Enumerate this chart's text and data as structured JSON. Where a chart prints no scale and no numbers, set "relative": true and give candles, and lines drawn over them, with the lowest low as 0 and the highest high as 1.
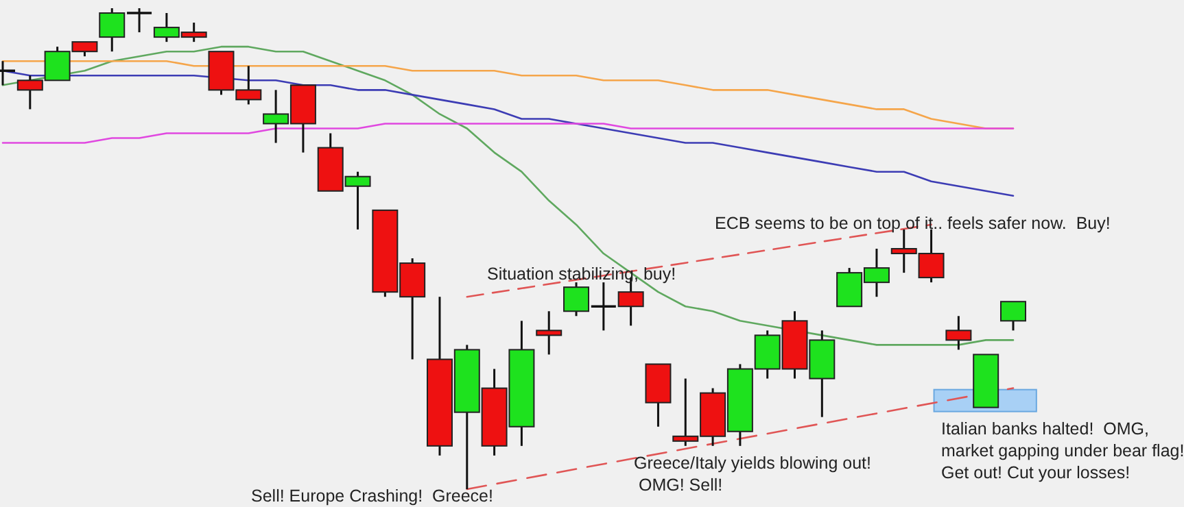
{
  "chart_data": {
    "type": "candlestick",
    "relative": true,
    "categories": [
      null,
      null,
      null,
      null,
      null,
      null,
      null,
      null,
      null,
      null,
      null,
      null,
      null,
      null,
      null,
      null,
      null,
      null,
      null,
      null,
      null,
      null,
      null,
      null,
      null,
      null,
      null,
      null,
      null,
      null,
      null,
      null,
      null,
      null,
      null,
      null,
      null,
      null
    ],
    "ohlc": [
      [
        0.87,
        0.89,
        0.84,
        0.87
      ],
      [
        0.85,
        0.86,
        0.79,
        0.83
      ],
      [
        0.85,
        0.92,
        0.85,
        0.91
      ],
      [
        0.93,
        0.93,
        0.9,
        0.91
      ],
      [
        0.94,
        1,
        0.91,
        0.99
      ],
      [
        0.99,
        1,
        0.95,
        0.99
      ],
      [
        0.94,
        0.99,
        0.93,
        0.96
      ],
      [
        0.95,
        0.97,
        0.93,
        0.94
      ],
      [
        0.91,
        0.91,
        0.82,
        0.83
      ],
      [
        0.83,
        0.88,
        0.8,
        0.81
      ],
      [
        0.76,
        0.83,
        0.72,
        0.78
      ],
      [
        0.84,
        0.84,
        0.7,
        0.76
      ],
      [
        0.71,
        0.74,
        0.62,
        0.62
      ],
      [
        0.63,
        0.66,
        0.54,
        0.65
      ],
      [
        0.58,
        0.58,
        0.4,
        0.41
      ],
      [
        0.47,
        0.48,
        0.27,
        0.4
      ],
      [
        0.27,
        0.4,
        0.07,
        0.09
      ],
      [
        0.16,
        0.3,
        0,
        0.29
      ],
      [
        0.21,
        0.25,
        0.07,
        0.09
      ],
      [
        0.13,
        0.35,
        0.09,
        0.29
      ],
      [
        0.33,
        0.37,
        0.28,
        0.32
      ],
      [
        0.37,
        0.43,
        0.36,
        0.42
      ],
      [
        0.38,
        0.43,
        0.33,
        0.38
      ],
      [
        0.41,
        0.44,
        0.34,
        0.38
      ],
      [
        0.26,
        0.26,
        0.13,
        0.18
      ],
      [
        0.11,
        0.23,
        0.09,
        0.1
      ],
      [
        0.2,
        0.21,
        0.09,
        0.11
      ],
      [
        0.12,
        0.26,
        0.09,
        0.25
      ],
      [
        0.25,
        0.33,
        0.23,
        0.32
      ],
      [
        0.35,
        0.37,
        0.23,
        0.25
      ],
      [
        0.23,
        0.33,
        0.15,
        0.31
      ],
      [
        0.38,
        0.46,
        0.38,
        0.45
      ],
      [
        0.43,
        0.5,
        0.4,
        0.46
      ],
      [
        0.5,
        0.54,
        0.45,
        0.49
      ],
      [
        0.49,
        0.54,
        0.43,
        0.44
      ],
      [
        0.33,
        0.36,
        0.29,
        0.31
      ],
      [
        0.17,
        0.28,
        0.17,
        0.28
      ],
      [
        0.35,
        0.39,
        0.33,
        0.39
      ]
    ],
    "colors": [
      "#111111",
      "#ee1111",
      "#1ee21e",
      "#ee1111",
      "#1ee21e",
      "#111111",
      "#1ee21e",
      "#ee1111",
      "#ee1111",
      "#ee1111",
      "#1ee21e",
      "#ee1111",
      "#ee1111",
      "#1ee21e",
      "#ee1111",
      "#ee1111",
      "#ee1111",
      "#1ee21e",
      "#ee1111",
      "#1ee21e",
      "#ee1111",
      "#1ee21e",
      "#111111",
      "#ee1111",
      "#ee1111",
      "#ee1111",
      "#ee1111",
      "#1ee21e",
      "#1ee21e",
      "#ee1111",
      "#1ee21e",
      "#1ee21e",
      "#1ee21e",
      "#ee1111",
      "#ee1111",
      "#ee1111",
      "#1ee21e",
      "#1ee21e"
    ],
    "series": [
      {
        "type": "line",
        "color": "#5fa85f",
        "values": [
          0.84,
          0.85,
          null,
          0.87,
          0.89,
          0.9,
          0.91,
          0.91,
          0.92,
          0.92,
          0.91,
          0.91,
          0.89,
          0.87,
          0.85,
          0.82,
          0.78,
          0.75,
          0.7,
          0.66,
          0.6,
          0.55,
          0.49,
          0.45,
          0.41,
          0.38,
          0.37,
          0.35,
          0.34,
          null,
          0.32,
          0.31,
          0.3,
          0.3,
          0.3,
          0.3,
          0.31,
          0.31
        ]
      },
      {
        "type": "line",
        "color": "#f5a54a",
        "values": [
          0.89,
          0.89,
          null,
          0.89,
          0.89,
          0.89,
          0.89,
          0.88,
          null,
          0.88,
          0.88,
          0.88,
          0.88,
          0.88,
          0.88,
          0.87,
          0.87,
          0.87,
          0.87,
          0.86,
          0.86,
          0.86,
          0.85,
          0.85,
          0.85,
          0.84,
          0.83,
          0.83,
          0.83,
          0.82,
          0.81,
          0.8,
          0.79,
          0.79,
          0.77,
          0.76,
          0.75,
          0.75
        ]
      },
      {
        "type": "line",
        "color": "#3c3cb4",
        "values": [
          0.87,
          0.86,
          null,
          0.86,
          0.86,
          0.86,
          0.86,
          0.86,
          null,
          0.85,
          0.85,
          0.84,
          0.84,
          0.83,
          0.83,
          0.82,
          0.81,
          0.8,
          0.79,
          0.77,
          0.77,
          0.76,
          0.75,
          0.74,
          0.73,
          0.72,
          0.72,
          0.71,
          0.7,
          0.69,
          0.68,
          0.67,
          0.66,
          0.66,
          0.64,
          0.63,
          0.62,
          0.61
        ]
      },
      {
        "type": "line",
        "color": "#e048e0",
        "values": [
          0.72,
          0.72,
          0.72,
          0.72,
          0.73,
          0.73,
          0.74,
          0.74,
          0.74,
          0.74,
          0.75,
          0.75,
          0.75,
          0.75,
          0.76,
          0.76,
          0.76,
          0.76,
          0.76,
          0.76,
          0.76,
          0.76,
          0.76,
          0.75,
          0.75,
          0.75,
          0.75,
          0.75,
          0.75,
          0.75,
          0.75,
          0.75,
          0.75,
          0.75,
          0.75,
          0.75,
          0.75,
          0.75
        ]
      },
      {
        "type": "line",
        "color": "#e05555",
        "line_style": "dashed",
        "values": [
          null,
          null,
          null,
          null,
          null,
          null,
          null,
          null,
          null,
          null,
          null,
          null,
          null,
          null,
          null,
          null,
          null,
          0.4,
          null,
          null,
          null,
          null,
          null,
          null,
          null,
          null,
          null,
          null,
          null,
          null,
          null,
          null,
          null,
          null,
          0.55,
          null,
          null,
          null
        ]
      },
      {
        "type": "line",
        "color": "#e05555",
        "line_style": "dashed",
        "values": [
          null,
          null,
          null,
          null,
          null,
          null,
          null,
          null,
          null,
          null,
          null,
          null,
          null,
          null,
          null,
          null,
          null,
          0,
          null,
          null,
          null,
          null,
          null,
          null,
          null,
          null,
          null,
          null,
          null,
          null,
          null,
          null,
          null,
          null,
          null,
          null,
          null,
          0.21
        ]
      }
    ],
    "annotations": [
      "Situation stabilizing, buy!",
      "ECB seems to be on top of it.. feels safer now.  Buy!",
      "Sell! Europe Crashing!  Greece!",
      "Greece/Italy yields blowing out!\n OMG! Sell!",
      "Italian banks halted!  OMG,\nmarket gapping under bear flag!\nGet out! Cut your losses!"
    ]
  }
}
